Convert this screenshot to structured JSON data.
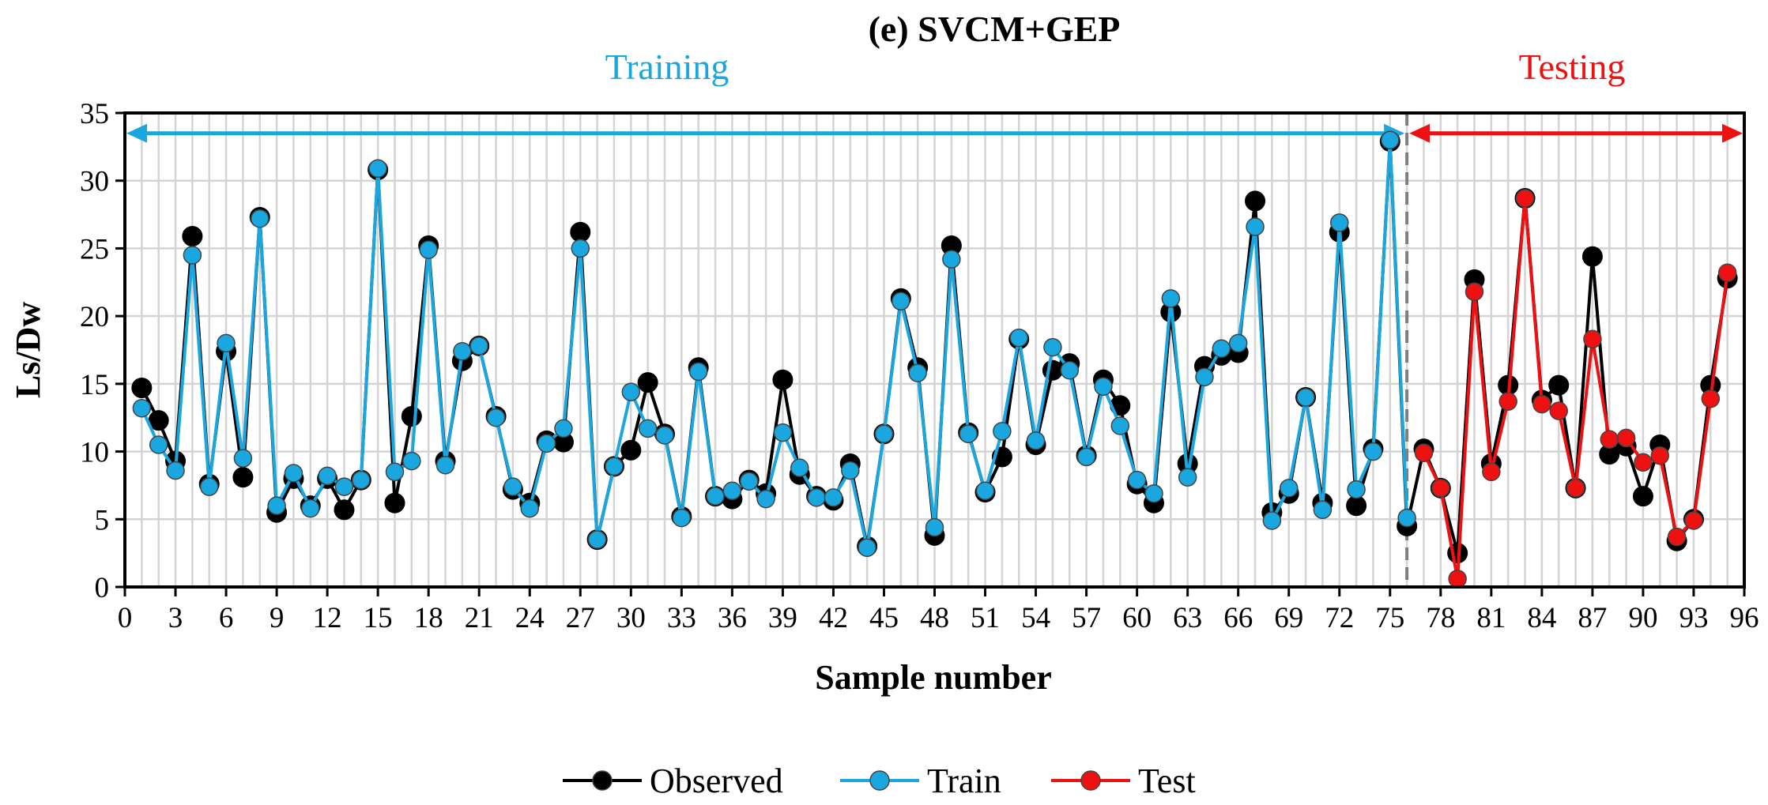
{
  "chart_data": {
    "type": "line",
    "title": "(e) SVCM+GEP",
    "xlabel": "Sample number",
    "ylabel": "Ls/Dw",
    "xlim": [
      0,
      96
    ],
    "ylim": [
      0,
      35
    ],
    "x_ticks": [
      0,
      3,
      6,
      9,
      12,
      15,
      18,
      21,
      24,
      27,
      30,
      33,
      36,
      39,
      42,
      45,
      48,
      51,
      54,
      57,
      60,
      63,
      66,
      69,
      72,
      75,
      78,
      81,
      84,
      87,
      90,
      93,
      96
    ],
    "y_ticks": [
      0,
      5,
      10,
      15,
      20,
      25,
      30,
      35
    ],
    "grid": true,
    "legend_position": "bottom",
    "regions": [
      {
        "label": "Training",
        "from": 0,
        "to": 76,
        "color": "#1aa7e0"
      },
      {
        "label": "Testing",
        "from": 76,
        "to": 96,
        "color": "#ee1111"
      }
    ],
    "split_line_x": 76,
    "series": [
      {
        "name": "Observed",
        "color": "#000000",
        "x": [
          1,
          2,
          3,
          4,
          5,
          6,
          7,
          8,
          9,
          10,
          11,
          12,
          13,
          14,
          15,
          16,
          17,
          18,
          19,
          20,
          21,
          22,
          23,
          24,
          25,
          26,
          27,
          28,
          29,
          30,
          31,
          32,
          33,
          34,
          35,
          36,
          37,
          38,
          39,
          40,
          41,
          42,
          43,
          44,
          45,
          46,
          47,
          48,
          49,
          50,
          51,
          52,
          53,
          54,
          55,
          56,
          57,
          58,
          59,
          60,
          61,
          62,
          63,
          64,
          65,
          66,
          67,
          68,
          69,
          70,
          71,
          72,
          73,
          74,
          75,
          76,
          77,
          78,
          79,
          80,
          81,
          82,
          83,
          84,
          85,
          86,
          87,
          88,
          89,
          90,
          91,
          92,
          93,
          94,
          95
        ],
        "values": [
          14.7,
          12.3,
          9.3,
          25.9,
          7.6,
          17.4,
          8.1,
          27.3,
          5.5,
          8.0,
          6.0,
          8.0,
          5.7,
          7.9,
          30.8,
          6.2,
          12.6,
          25.2,
          9.3,
          16.7,
          17.8,
          12.6,
          7.2,
          6.2,
          10.8,
          10.7,
          26.2,
          3.5,
          8.9,
          10.1,
          15.1,
          11.3,
          5.2,
          16.2,
          6.7,
          6.5,
          7.9,
          6.9,
          15.3,
          8.3,
          6.7,
          6.4,
          9.1,
          3.0,
          11.3,
          21.3,
          16.2,
          3.8,
          25.2,
          11.4,
          7.0,
          9.6,
          18.3,
          10.5,
          16.0,
          16.5,
          9.7,
          15.3,
          13.4,
          7.6,
          6.2,
          20.3,
          9.1,
          16.3,
          17.1,
          17.3,
          28.5,
          5.5,
          6.9,
          14.0,
          6.2,
          26.2,
          6.0,
          10.2,
          32.9,
          4.5,
          10.2,
          7.3,
          2.5,
          22.7,
          9.1,
          14.9,
          28.7,
          13.8,
          14.9,
          7.3,
          24.4,
          9.8,
          10.4,
          6.7,
          10.5,
          3.4,
          5.0,
          14.9,
          22.8
        ]
      },
      {
        "name": "Train",
        "color": "#1aa7e0",
        "x": [
          1,
          2,
          3,
          4,
          5,
          6,
          7,
          8,
          9,
          10,
          11,
          12,
          13,
          14,
          15,
          16,
          17,
          18,
          19,
          20,
          21,
          22,
          23,
          24,
          25,
          26,
          27,
          28,
          29,
          30,
          31,
          32,
          33,
          34,
          35,
          36,
          37,
          38,
          39,
          40,
          41,
          42,
          43,
          44,
          45,
          46,
          47,
          48,
          49,
          50,
          51,
          52,
          53,
          54,
          55,
          56,
          57,
          58,
          59,
          60,
          61,
          62,
          63,
          64,
          65,
          66,
          67,
          68,
          69,
          70,
          71,
          72,
          73,
          74,
          75,
          76
        ],
        "values": [
          13.2,
          10.5,
          8.6,
          24.5,
          7.4,
          18.0,
          9.5,
          27.2,
          6.0,
          8.4,
          5.8,
          8.2,
          7.4,
          7.9,
          30.9,
          8.5,
          9.3,
          24.9,
          9.0,
          17.4,
          17.8,
          12.5,
          7.4,
          5.8,
          10.6,
          11.7,
          25.0,
          3.5,
          8.9,
          14.4,
          11.7,
          11.2,
          5.1,
          15.9,
          6.7,
          7.1,
          7.8,
          6.5,
          11.4,
          8.8,
          6.6,
          6.6,
          8.6,
          2.9,
          11.3,
          21.1,
          15.8,
          4.4,
          24.2,
          11.3,
          7.1,
          11.5,
          18.4,
          10.8,
          17.7,
          16.0,
          9.6,
          14.8,
          11.9,
          7.9,
          6.9,
          21.3,
          8.1,
          15.5,
          17.6,
          18.0,
          26.6,
          4.9,
          7.3,
          14.0,
          5.7,
          26.9,
          7.2,
          10.0,
          33.0,
          5.1
        ]
      },
      {
        "name": "Test",
        "color": "#ee1111",
        "x": [
          77,
          78,
          79,
          80,
          81,
          82,
          83,
          84,
          85,
          86,
          87,
          88,
          89,
          90,
          91,
          92,
          93,
          94,
          95
        ],
        "values": [
          9.9,
          7.3,
          0.6,
          21.8,
          8.5,
          13.7,
          28.7,
          13.5,
          13.0,
          7.3,
          18.3,
          10.9,
          11.0,
          9.2,
          9.7,
          3.7,
          4.9,
          13.9,
          23.2
        ]
      }
    ]
  }
}
